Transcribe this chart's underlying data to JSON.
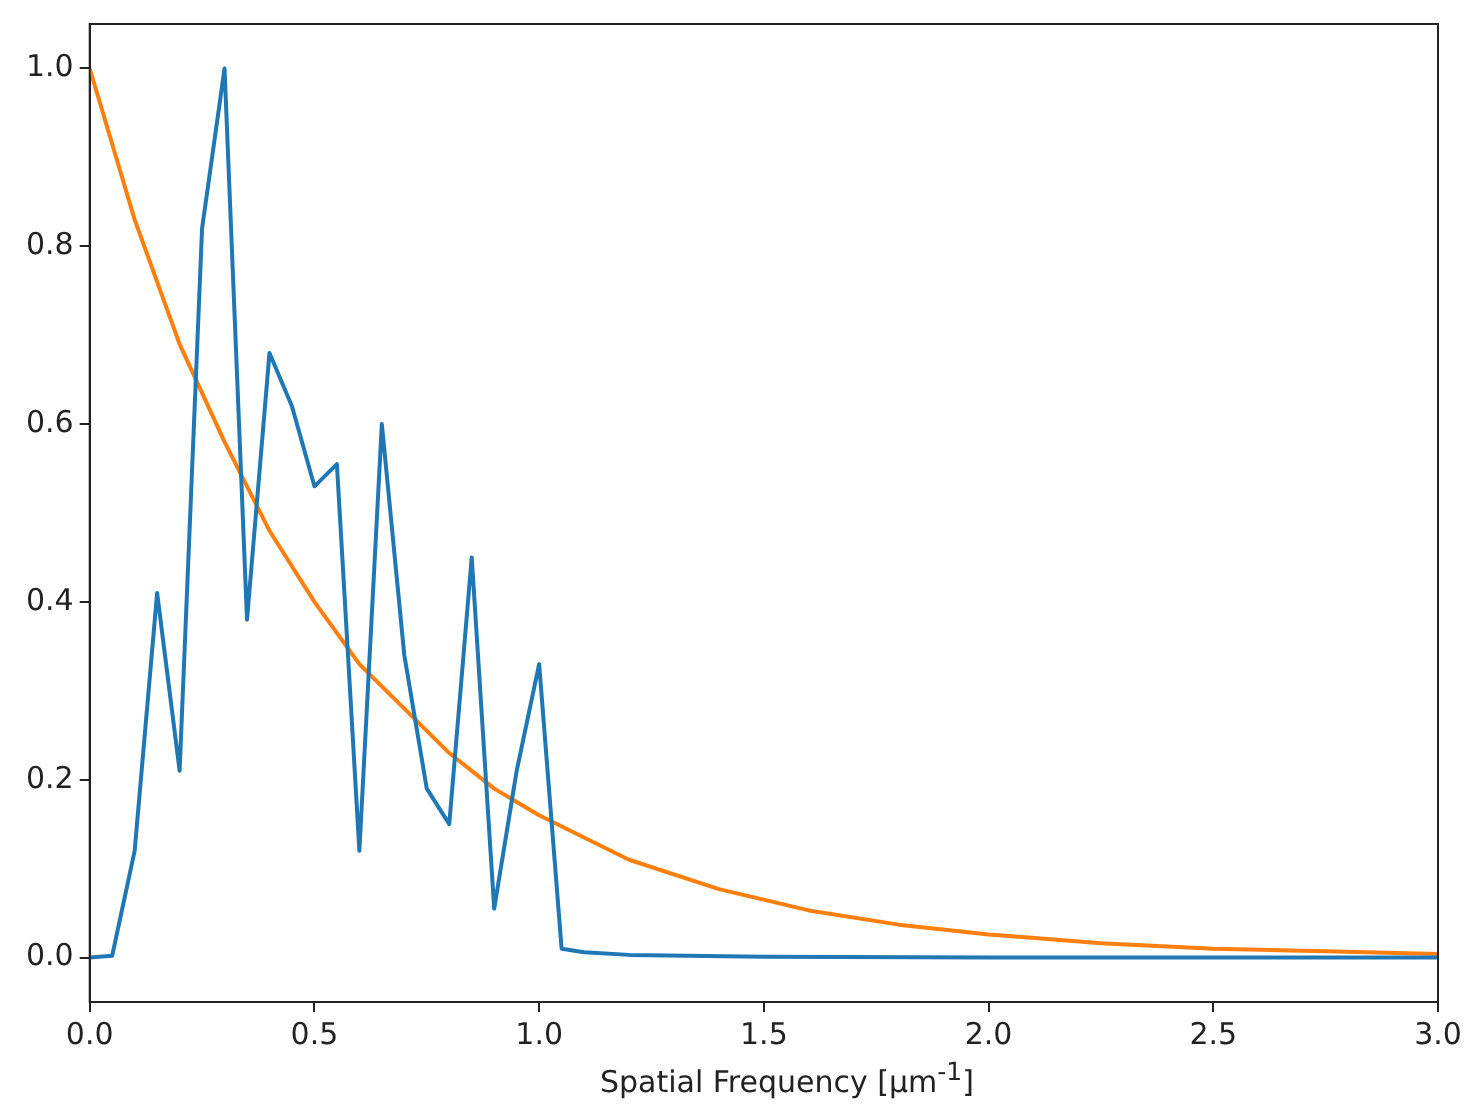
{
  "chart_data": {
    "type": "line",
    "xlabel": "Spatial Frequency [μm$^{-1}$]",
    "xlim": [
      0,
      3
    ],
    "xticks": [
      {
        "value": 0,
        "label": "0.0"
      },
      {
        "value": 0.5,
        "label": "0.5"
      },
      {
        "value": 1,
        "label": "1.0"
      },
      {
        "value": 1.5,
        "label": "1.5"
      },
      {
        "value": 2,
        "label": "2.0"
      },
      {
        "value": 2.5,
        "label": "2.5"
      },
      {
        "value": 3,
        "label": "3.0"
      }
    ],
    "ylim": [
      -0.05,
      1.05
    ],
    "yticks": [
      {
        "value": 0,
        "label": "0.0"
      },
      {
        "value": 0.2,
        "label": "0.2"
      },
      {
        "value": 0.4,
        "label": "0.4"
      },
      {
        "value": 0.6,
        "label": "0.6"
      },
      {
        "value": 0.8,
        "label": "0.8"
      },
      {
        "value": 1,
        "label": "1.0"
      }
    ],
    "grid": false,
    "legend": false,
    "marker": "none",
    "line_style": "solid",
    "series": [
      {
        "color": "#1f77b4",
        "x": [
          0,
          0.05,
          0.1,
          0.15,
          0.2,
          0.25,
          0.3,
          0.35,
          0.4,
          0.45,
          0.5,
          0.55,
          0.6,
          0.65,
          0.7,
          0.75,
          0.8,
          0.85,
          0.9,
          0.95,
          1.0,
          1.05,
          1.1,
          1.2,
          1.5,
          2.0,
          3.0
        ],
        "values": [
          0,
          0.002,
          0.12,
          0.41,
          0.21,
          0.82,
          1.0,
          0.38,
          0.68,
          0.62,
          0.53,
          0.555,
          0.12,
          0.6,
          0.34,
          0.19,
          0.15,
          0.45,
          0.055,
          0.21,
          0.33,
          0.01,
          0.006,
          0.003,
          0.001,
          0,
          0
        ]
      },
      {
        "color": "#ff7f0e",
        "x": [
          0,
          0.1,
          0.2,
          0.3,
          0.4,
          0.5,
          0.6,
          0.7,
          0.8,
          0.9,
          1.0,
          1.2,
          1.4,
          1.6,
          1.8,
          2.0,
          2.25,
          2.5,
          2.75,
          3.0
        ],
        "values": [
          1,
          0.83,
          0.69,
          0.58,
          0.48,
          0.4,
          0.33,
          0.28,
          0.23,
          0.19,
          0.16,
          0.11,
          0.077,
          0.053,
          0.037,
          0.026,
          0.016,
          0.01,
          0.007,
          0.004
        ]
      }
    ]
  }
}
